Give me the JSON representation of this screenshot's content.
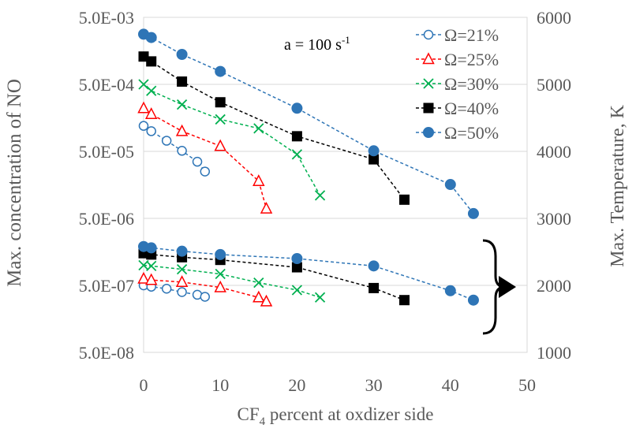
{
  "chart_data": {
    "type": "scatter",
    "title": "",
    "annotation": {
      "base": "a = 100 s",
      "superscript": "-1"
    },
    "xlabel": {
      "base": "CF",
      "subscript": "4",
      "rest": " percent at oxdizer side"
    },
    "ylabel_left": "Max. concentration of NO",
    "ylabel_right": "Max. Temperature, K",
    "xlim": [
      0,
      50
    ],
    "ylim_left": [
      5e-08,
      0.005
    ],
    "ylim_right": [
      1000,
      6000
    ],
    "yscale_left": "log",
    "x_ticks": [
      "0",
      "10",
      "20",
      "30",
      "40",
      "50"
    ],
    "y_left_ticks": [
      "5.0E-03",
      "5.0E-04",
      "5.0E-05",
      "5.0E-06",
      "5.0E-07",
      "5.0E-08"
    ],
    "y_right_ticks": [
      "6000",
      "5000",
      "4000",
      "3000",
      "2000",
      "1000"
    ],
    "legend_position": "top-right",
    "series": [
      {
        "name": "Ω=21%",
        "color": "#2e75b6",
        "marker": "open-circle",
        "no": {
          "x": [
            0,
            1,
            3,
            5,
            7,
            8
          ],
          "y": [
            0.00012,
            0.0001,
            7.2e-05,
            5.1e-05,
            3.5e-05,
            2.5e-05
          ]
        },
        "temp": {
          "x": [
            0,
            1,
            3,
            5,
            7,
            8
          ],
          "y": [
            2000,
            1980,
            1950,
            1900,
            1860,
            1830
          ]
        }
      },
      {
        "name": "Ω=25%",
        "color": "#ff0000",
        "marker": "open-triangle",
        "no": {
          "x": [
            0,
            1,
            5,
            10,
            15,
            16
          ],
          "y": [
            0.00022,
            0.00018,
            0.0001,
            6e-05,
            1.8e-05,
            7e-06
          ]
        },
        "temp": {
          "x": [
            0,
            1,
            5,
            10,
            15,
            16
          ],
          "y": [
            2100,
            2080,
            2050,
            1970,
            1820,
            1760
          ]
        }
      },
      {
        "name": "Ω=30%",
        "color": "#00b050",
        "marker": "x",
        "no": {
          "x": [
            0,
            1,
            5,
            10,
            15,
            20,
            23
          ],
          "y": [
            0.0005,
            0.0004,
            0.00025,
            0.00015,
            0.00011,
            4.5e-05,
            1.1e-05
          ]
        },
        "temp": {
          "x": [
            0,
            1,
            5,
            10,
            15,
            20,
            23
          ],
          "y": [
            2300,
            2290,
            2240,
            2170,
            2040,
            1930,
            1820
          ]
        }
      },
      {
        "name": "Ω=40%",
        "color": "#000000",
        "marker": "filled-square",
        "no": {
          "x": [
            0,
            1,
            5,
            10,
            20,
            30,
            34
          ],
          "y": [
            0.0013,
            0.0011,
            0.00055,
            0.00027,
            8.4e-05,
            3.8e-05,
            9.5e-06
          ]
        },
        "temp": {
          "x": [
            0,
            1,
            5,
            10,
            20,
            30,
            34
          ],
          "y": [
            2480,
            2460,
            2420,
            2380,
            2270,
            1960,
            1780
          ]
        }
      },
      {
        "name": "Ω=50%",
        "color": "#2e75b6",
        "marker": "filled-circle",
        "no": {
          "x": [
            0,
            1,
            5,
            10,
            20,
            30,
            40,
            43
          ],
          "y": [
            0.0028,
            0.0025,
            0.0014,
            0.00078,
            0.00022,
            5.1e-05,
            1.6e-05,
            5.9e-06
          ]
        },
        "temp": {
          "x": [
            0,
            1,
            5,
            10,
            20,
            30,
            40,
            43
          ],
          "y": [
            2580,
            2560,
            2510,
            2460,
            2400,
            2290,
            1920,
            1780
          ]
        }
      }
    ]
  }
}
